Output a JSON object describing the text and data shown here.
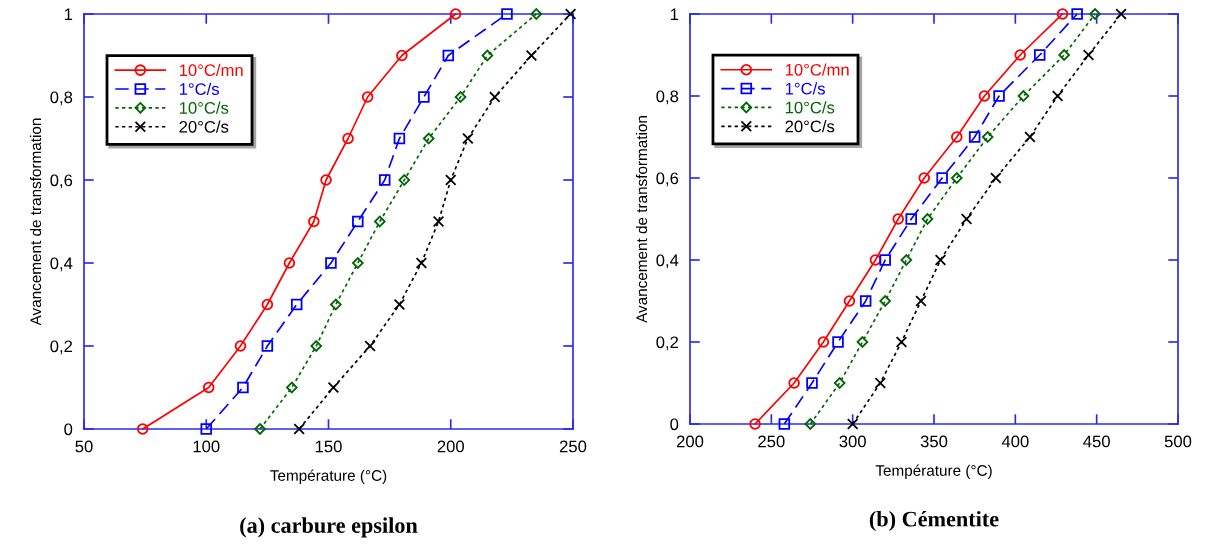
{
  "chart_data": [
    {
      "type": "line",
      "title": "(a) carbure epsilon",
      "xlabel": "Température (°C)",
      "ylabel": "Avancement de transformation",
      "xlim": [
        50,
        250
      ],
      "xticks": [
        50,
        100,
        150,
        200,
        250
      ],
      "ylim": [
        0,
        1
      ],
      "yticks": [
        0,
        {
          "value": 0.2,
          "label": "0,2"
        },
        {
          "value": 0.4,
          "label": "0,4"
        },
        {
          "value": 0.6,
          "label": "0,6"
        },
        {
          "value": 0.8,
          "label": "0,8"
        },
        1
      ],
      "legend": "top left",
      "grid": false,
      "series": [
        {
          "name": "10°C/mn",
          "color": "#ff0000",
          "marker": "circle",
          "line_style": "solid",
          "x": [
            74,
            101,
            114,
            125,
            134,
            144,
            149,
            158,
            166,
            180,
            202
          ],
          "values": [
            0,
            0.1,
            0.2,
            0.3,
            0.4,
            0.5,
            0.6,
            0.7,
            0.8,
            0.9,
            1
          ]
        },
        {
          "name": "1°C/s",
          "color": "#0000ff",
          "marker": "square",
          "line_style": "dashed",
          "x": [
            100,
            115,
            125,
            137,
            151,
            162,
            173,
            179,
            189,
            199,
            223
          ],
          "values": [
            0,
            0.1,
            0.2,
            0.3,
            0.4,
            0.5,
            0.6,
            0.7,
            0.8,
            0.9,
            1
          ]
        },
        {
          "name": "10°C/s",
          "color": "#006600",
          "marker": "diamond",
          "line_style": "dotted",
          "x": [
            122,
            135,
            145,
            153,
            162,
            171,
            181,
            191,
            204,
            215,
            235
          ],
          "values": [
            0,
            0.1,
            0.2,
            0.3,
            0.4,
            0.5,
            0.6,
            0.7,
            0.8,
            0.9,
            1
          ]
        },
        {
          "name": "20°C/s",
          "color": "#000000",
          "marker": "cross",
          "line_style": "dotted",
          "x": [
            138,
            152,
            167,
            179,
            188,
            195,
            200,
            207,
            218,
            233,
            249
          ],
          "values": [
            0,
            0.1,
            0.2,
            0.3,
            0.4,
            0.5,
            0.6,
            0.7,
            0.8,
            0.9,
            1
          ]
        }
      ]
    },
    {
      "type": "line",
      "title": "(b) Cémentite",
      "xlabel": "Température (°C)",
      "ylabel": "Avancement de transformation",
      "xlim": [
        200,
        500
      ],
      "xticks": [
        200,
        250,
        300,
        350,
        400,
        450,
        500
      ],
      "ylim": [
        0,
        1
      ],
      "yticks": [
        0,
        {
          "value": 0.2,
          "label": "0,2"
        },
        {
          "value": 0.4,
          "label": "0,4"
        },
        {
          "value": 0.6,
          "label": "0,6"
        },
        {
          "value": 0.8,
          "label": "0,8"
        },
        1
      ],
      "legend": "top left",
      "grid": false,
      "series": [
        {
          "name": "10°C/mn",
          "color": "#ff0000",
          "marker": "circle",
          "line_style": "solid",
          "x": [
            240,
            264,
            282,
            298,
            314,
            328,
            344,
            364,
            381,
            403,
            429
          ],
          "values": [
            0,
            0.1,
            0.2,
            0.3,
            0.4,
            0.5,
            0.6,
            0.7,
            0.8,
            0.9,
            1
          ]
        },
        {
          "name": "1°C/s",
          "color": "#0000ff",
          "marker": "square",
          "line_style": "dashed",
          "x": [
            258,
            275,
            291,
            308,
            320,
            336,
            355,
            375,
            390,
            415,
            438
          ],
          "values": [
            0,
            0.1,
            0.2,
            0.3,
            0.4,
            0.5,
            0.6,
            0.7,
            0.8,
            0.9,
            1
          ]
        },
        {
          "name": "10°C/s",
          "color": "#006600",
          "marker": "diamond",
          "line_style": "dotted",
          "x": [
            274,
            292,
            306,
            320,
            333,
            346,
            364,
            383,
            405,
            430,
            449
          ],
          "values": [
            0,
            0.1,
            0.2,
            0.3,
            0.4,
            0.5,
            0.6,
            0.7,
            0.8,
            0.9,
            1
          ]
        },
        {
          "name": "20°C/s",
          "color": "#000000",
          "marker": "cross",
          "line_style": "dotted",
          "x": [
            300,
            317,
            330,
            342,
            354,
            370,
            388,
            409,
            426,
            445,
            465
          ],
          "values": [
            0,
            0.1,
            0.2,
            0.3,
            0.4,
            0.5,
            0.6,
            0.7,
            0.8,
            0.9,
            1
          ]
        }
      ]
    }
  ]
}
